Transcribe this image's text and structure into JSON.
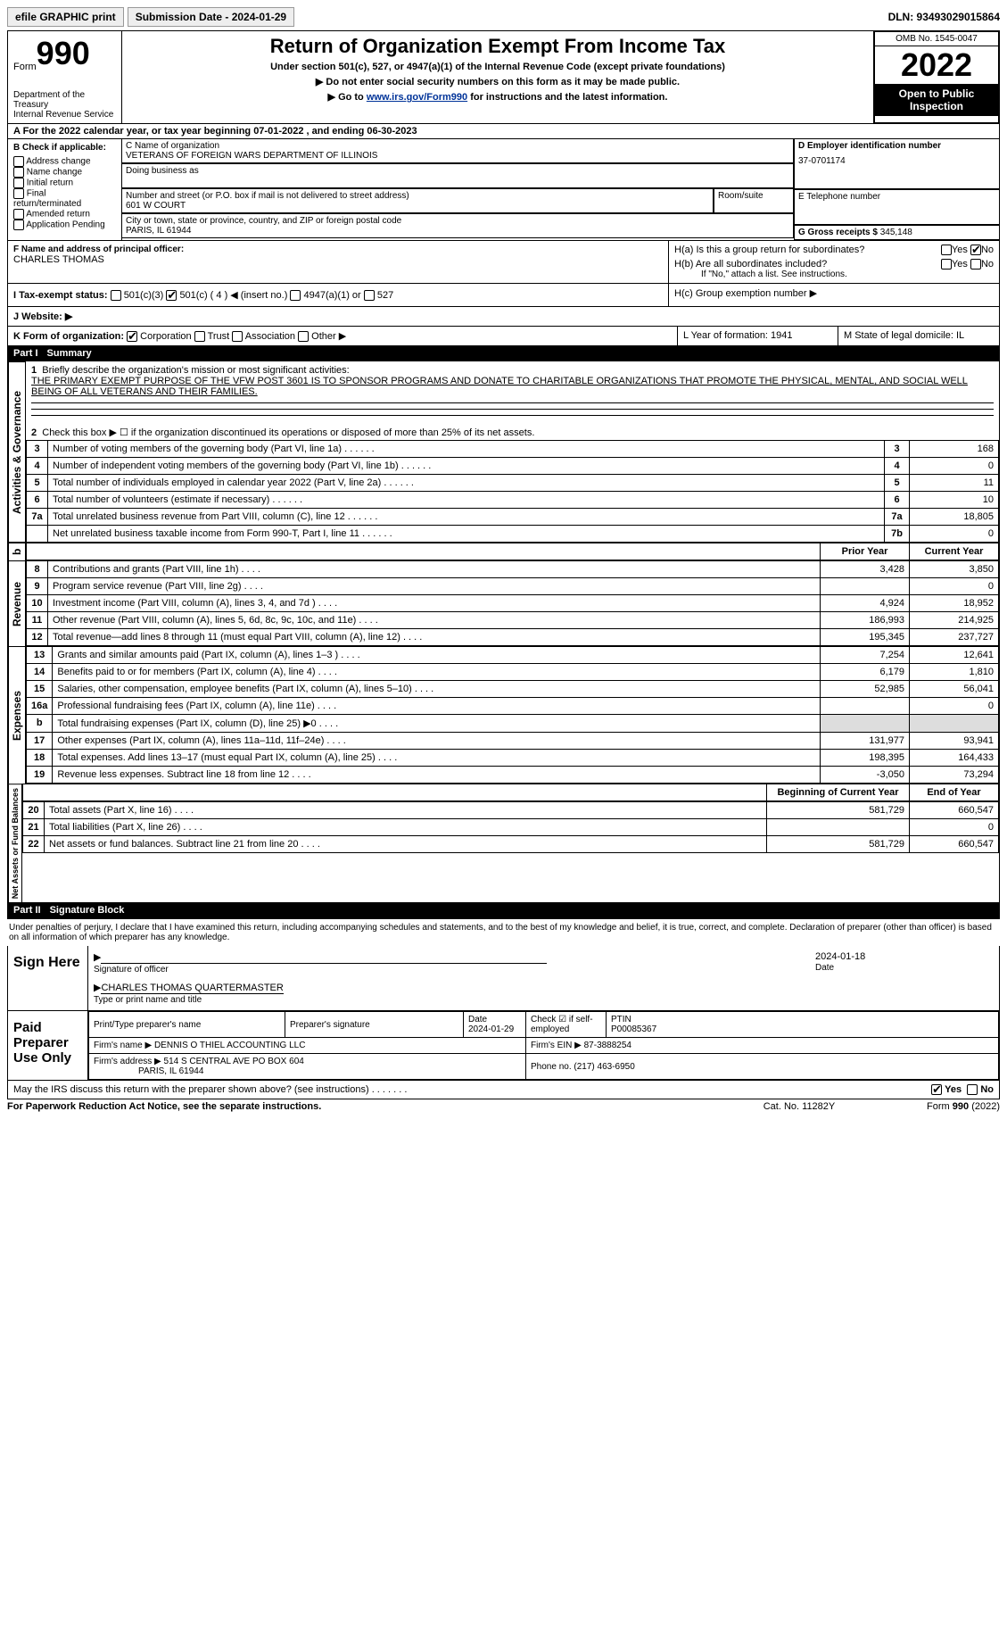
{
  "top": {
    "efile": "efile GRAPHIC print",
    "submission": "Submission Date - 2024-01-29",
    "dln": "DLN: 93493029015864"
  },
  "header": {
    "form_word": "Form",
    "form_num": "990",
    "title": "Return of Organization Exempt From Income Tax",
    "sub1": "Under section 501(c), 527, or 4947(a)(1) of the Internal Revenue Code (except private foundations)",
    "sub2": "▶ Do not enter social security numbers on this form as it may be made public.",
    "sub3_pre": "▶ Go to ",
    "sub3_link": "www.irs.gov/Form990",
    "sub3_post": " for instructions and the latest information.",
    "dept": "Department of the Treasury",
    "irs": "Internal Revenue Service",
    "omb": "OMB No. 1545-0047",
    "year": "2022",
    "open": "Open to Public Inspection"
  },
  "A": "A For the 2022 calendar year, or tax year beginning 07-01-2022    , and ending 06-30-2023",
  "B": {
    "label": "B Check if applicable:",
    "items": [
      "Address change",
      "Name change",
      "Initial return",
      "Final return/terminated",
      "Amended return",
      "Application Pending"
    ]
  },
  "C": {
    "name_lbl": "C Name of organization",
    "name": "VETERANS OF FOREIGN WARS DEPARTMENT OF ILLINOIS",
    "dba_lbl": "Doing business as",
    "addr_lbl": "Number and street (or P.O. box if mail is not delivered to street address)",
    "room_lbl": "Room/suite",
    "addr": "601 W COURT",
    "city_lbl": "City or town, state or province, country, and ZIP or foreign postal code",
    "city": "PARIS, IL  61944"
  },
  "D": {
    "lbl": "D Employer identification number",
    "val": "37-0701174"
  },
  "E": {
    "lbl": "E Telephone number"
  },
  "G": {
    "lbl": "G Gross receipts $",
    "val": "345,148"
  },
  "F": {
    "lbl": "F  Name and address of principal officer:",
    "val": "CHARLES THOMAS"
  },
  "H": {
    "a": "H(a)  Is this a group return for subordinates?",
    "b": "H(b)  Are all subordinates included?",
    "note": "If \"No,\" attach a list. See instructions.",
    "c": "H(c)  Group exemption number ▶",
    "yes": "Yes",
    "no": "No"
  },
  "I": {
    "lbl": "I    Tax-exempt status:",
    "o1": "501(c)(3)",
    "o2": "501(c) ( 4 ) ◀ (insert no.)",
    "o3": "4947(a)(1) or",
    "o4": "527"
  },
  "J": "J    Website: ▶",
  "K": {
    "lbl": "K Form of organization:",
    "o1": "Corporation",
    "o2": "Trust",
    "o3": "Association",
    "o4": "Other ▶"
  },
  "L": "L Year of formation: 1941",
  "M": "M State of legal domicile: IL",
  "parts": {
    "p1": "Part I",
    "p1t": "Summary",
    "p2": "Part II",
    "p2t": "Signature Block"
  },
  "sec_labels": {
    "ag": "Activities & Governance",
    "rev": "Revenue",
    "exp": "Expenses",
    "na": "Net Assets or Fund Balances"
  },
  "q1": {
    "lbl": "Briefly describe the organization's mission or most significant activities:",
    "txt": "THE PRIMARY EXEMPT PURPOSE OF THE VFW POST 3601 IS TO SPONSOR PROGRAMS AND DONATE TO CHARITABLE ORGANIZATIONS THAT PROMOTE THE PHYSICAL, MENTAL, AND SOCIAL WELL BEING OF ALL VETERANS AND THEIR FAMILIES."
  },
  "q2": "Check this box ▶ ☐  if the organization discontinued its operations or disposed of more than 25% of its net assets.",
  "rows_ag": [
    {
      "n": "3",
      "t": "Number of voting members of the governing body (Part VI, line 1a)",
      "b": "3",
      "v": "168"
    },
    {
      "n": "4",
      "t": "Number of independent voting members of the governing body (Part VI, line 1b)",
      "b": "4",
      "v": "0"
    },
    {
      "n": "5",
      "t": "Total number of individuals employed in calendar year 2022 (Part V, line 2a)",
      "b": "5",
      "v": "11"
    },
    {
      "n": "6",
      "t": "Total number of volunteers (estimate if necessary)",
      "b": "6",
      "v": "10"
    },
    {
      "n": "7a",
      "t": "Total unrelated business revenue from Part VIII, column (C), line 12",
      "b": "7a",
      "v": "18,805"
    },
    {
      "n": "",
      "t": "Net unrelated business taxable income from Form 990-T, Part I, line 11",
      "b": "7b",
      "v": "0"
    }
  ],
  "hdr_py": "Prior Year",
  "hdr_cy": "Current Year",
  "rows_rev": [
    {
      "n": "8",
      "t": "Contributions and grants (Part VIII, line 1h)",
      "py": "3,428",
      "cy": "3,850"
    },
    {
      "n": "9",
      "t": "Program service revenue (Part VIII, line 2g)",
      "py": "",
      "cy": "0"
    },
    {
      "n": "10",
      "t": "Investment income (Part VIII, column (A), lines 3, 4, and 7d )",
      "py": "4,924",
      "cy": "18,952"
    },
    {
      "n": "11",
      "t": "Other revenue (Part VIII, column (A), lines 5, 6d, 8c, 9c, 10c, and 11e)",
      "py": "186,993",
      "cy": "214,925"
    },
    {
      "n": "12",
      "t": "Total revenue—add lines 8 through 11 (must equal Part VIII, column (A), line 12)",
      "py": "195,345",
      "cy": "237,727"
    }
  ],
  "rows_exp": [
    {
      "n": "13",
      "t": "Grants and similar amounts paid (Part IX, column (A), lines 1–3 )",
      "py": "7,254",
      "cy": "12,641"
    },
    {
      "n": "14",
      "t": "Benefits paid to or for members (Part IX, column (A), line 4)",
      "py": "6,179",
      "cy": "1,810"
    },
    {
      "n": "15",
      "t": "Salaries, other compensation, employee benefits (Part IX, column (A), lines 5–10)",
      "py": "52,985",
      "cy": "56,041"
    },
    {
      "n": "16a",
      "t": "Professional fundraising fees (Part IX, column (A), line 11e)",
      "py": "",
      "cy": "0"
    },
    {
      "n": "b",
      "t": "Total fundraising expenses (Part IX, column (D), line 25) ▶0",
      "py": "__shade__",
      "cy": "__shade__"
    },
    {
      "n": "17",
      "t": "Other expenses (Part IX, column (A), lines 11a–11d, 11f–24e)",
      "py": "131,977",
      "cy": "93,941"
    },
    {
      "n": "18",
      "t": "Total expenses. Add lines 13–17 (must equal Part IX, column (A), line 25)",
      "py": "198,395",
      "cy": "164,433"
    },
    {
      "n": "19",
      "t": "Revenue less expenses. Subtract line 18 from line 12",
      "py": "-3,050",
      "cy": "73,294"
    }
  ],
  "hdr_bcy": "Beginning of Current Year",
  "hdr_ey": "End of Year",
  "rows_na": [
    {
      "n": "20",
      "t": "Total assets (Part X, line 16)",
      "py": "581,729",
      "cy": "660,547"
    },
    {
      "n": "21",
      "t": "Total liabilities (Part X, line 26)",
      "py": "",
      "cy": "0"
    },
    {
      "n": "22",
      "t": "Net assets or fund balances. Subtract line 21 from line 20",
      "py": "581,729",
      "cy": "660,547"
    }
  ],
  "penalty": "Under penalties of perjury, I declare that I have examined this return, including accompanying schedules and statements, and to the best of my knowledge and belief, it is true, correct, and complete. Declaration of preparer (other than officer) is based on all information of which preparer has any knowledge.",
  "sign": {
    "here": "Sign Here",
    "sig_lbl": "Signature of officer",
    "date_lbl": "Date",
    "date": "2024-01-18",
    "name": "CHARLES THOMAS QUARTERMASTER",
    "name_lbl": "Type or print name and title"
  },
  "paid": {
    "title": "Paid Preparer Use Only",
    "h1": "Print/Type preparer's name",
    "h2": "Preparer's signature",
    "h3": "Date",
    "h3v": "2024-01-29",
    "h4": "Check ☑ if self-employed",
    "h5": "PTIN",
    "h5v": "P00085367",
    "firm_lbl": "Firm's name    ▶",
    "firm": "DENNIS O THIEL ACCOUNTING LLC",
    "ein_lbl": "Firm's EIN ▶",
    "ein": "87-3888254",
    "addr_lbl": "Firm's address ▶",
    "addr": "514 S CENTRAL AVE PO BOX 604",
    "city": "PARIS, IL  61944",
    "phone_lbl": "Phone no.",
    "phone": "(217) 463-6950"
  },
  "discuss": "May the IRS discuss this return with the preparer shown above? (see instructions)",
  "footer": {
    "pra": "For Paperwork Reduction Act Notice, see the separate instructions.",
    "cat": "Cat. No. 11282Y",
    "form": "Form 990 (2022)"
  },
  "b_line": "b"
}
